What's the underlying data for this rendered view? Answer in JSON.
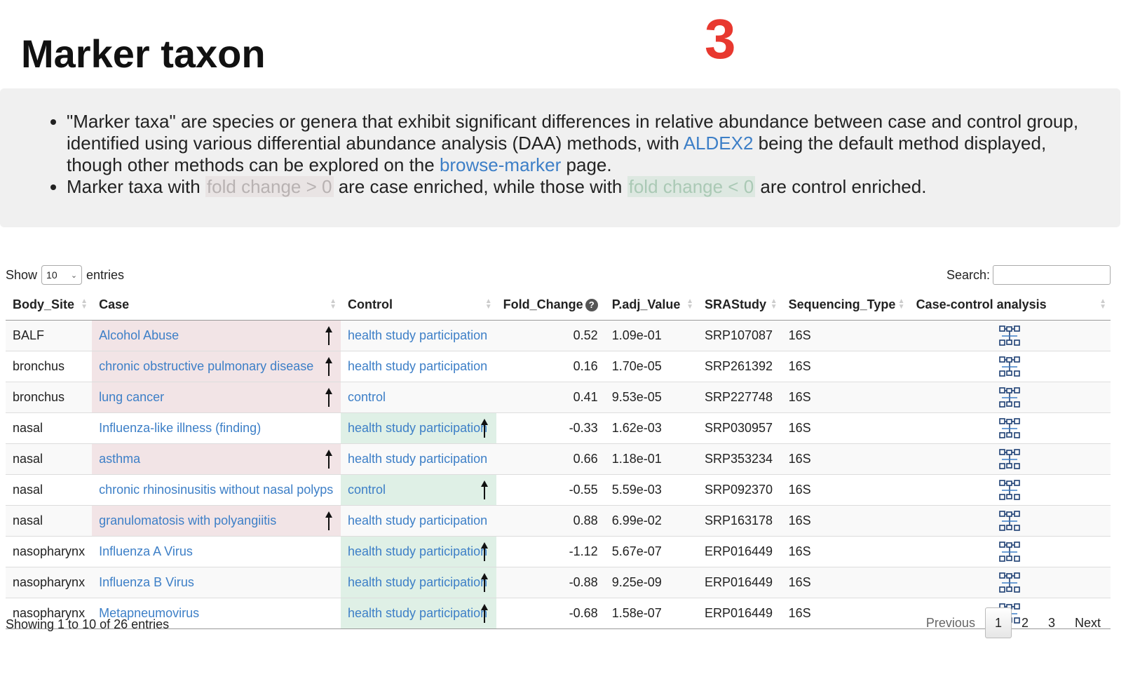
{
  "header": {
    "title": "Marker taxon",
    "step_number": "3"
  },
  "info": {
    "b1_part1": "\"Marker taxa\" are species or genera that exhibit significant differences in relative abundance between case and control group, identified using various differential abundance analysis (DAA) methods, with ",
    "b1_link1": "ALDEX2",
    "b1_part2": " being the default method displayed, though other methods can be explored on the ",
    "b1_link2": "browse-marker",
    "b1_part3": " page.",
    "b2_part1": "Marker taxa with ",
    "b2_pill1": "fold change > 0",
    "b2_part2": " are case enriched, while those with ",
    "b2_pill2": "fold change < 0",
    "b2_part3": " are control enriched."
  },
  "controls": {
    "show_label": "Show",
    "length_value": "10",
    "entries_label": "entries",
    "search_label": "Search:"
  },
  "table": {
    "headers": [
      "Body_Site",
      "Case",
      "Control",
      "Fold_Change",
      "P.adj_Value",
      "SRAStudy",
      "Sequencing_Type",
      "Case-control analysis"
    ],
    "help_icon_symbol": "?",
    "rows": [
      {
        "body_site": "BALF",
        "case": "Alcohol Abuse",
        "control": "health study participation",
        "fold_change": "0.52",
        "padj": "1.09e-01",
        "sra": "SRP107087",
        "seq_type": "16S",
        "enriched": "case"
      },
      {
        "body_site": "bronchus",
        "case": "chronic obstructive pulmonary disease",
        "control": "health study participation",
        "fold_change": "0.16",
        "padj": "1.70e-05",
        "sra": "SRP261392",
        "seq_type": "16S",
        "enriched": "case"
      },
      {
        "body_site": "bronchus",
        "case": "lung cancer",
        "control": "control",
        "fold_change": "0.41",
        "padj": "9.53e-05",
        "sra": "SRP227748",
        "seq_type": "16S",
        "enriched": "case"
      },
      {
        "body_site": "nasal",
        "case": "Influenza-like illness (finding)",
        "control": "health study participation",
        "fold_change": "-0.33",
        "padj": "1.62e-03",
        "sra": "SRP030957",
        "seq_type": "16S",
        "enriched": "control"
      },
      {
        "body_site": "nasal",
        "case": "asthma",
        "control": "health study participation",
        "fold_change": "0.66",
        "padj": "1.18e-01",
        "sra": "SRP353234",
        "seq_type": "16S",
        "enriched": "case"
      },
      {
        "body_site": "nasal",
        "case": "chronic rhinosinusitis without nasal polyps",
        "control": "control",
        "fold_change": "-0.55",
        "padj": "5.59e-03",
        "sra": "SRP092370",
        "seq_type": "16S",
        "enriched": "control"
      },
      {
        "body_site": "nasal",
        "case": "granulomatosis with polyangiitis",
        "control": "health study participation",
        "fold_change": "0.88",
        "padj": "6.99e-02",
        "sra": "SRP163178",
        "seq_type": "16S",
        "enriched": "case"
      },
      {
        "body_site": "nasopharynx",
        "case": "Influenza A Virus",
        "control": "health study participation",
        "fold_change": "-1.12",
        "padj": "5.67e-07",
        "sra": "ERP016449",
        "seq_type": "16S",
        "enriched": "control"
      },
      {
        "body_site": "nasopharynx",
        "case": "Influenza B Virus",
        "control": "health study participation",
        "fold_change": "-0.88",
        "padj": "9.25e-09",
        "sra": "ERP016449",
        "seq_type": "16S",
        "enriched": "control"
      },
      {
        "body_site": "nasopharynx",
        "case": "Metapneumovirus",
        "control": "health study participation",
        "fold_change": "-0.68",
        "padj": "1.58e-07",
        "sra": "ERP016449",
        "seq_type": "16S",
        "enriched": "control"
      }
    ]
  },
  "footer": {
    "info_text": "Showing 1 to 10 of 26 entries",
    "pagination": {
      "previous": "Previous",
      "pages": [
        "1",
        "2",
        "3"
      ],
      "current": "1",
      "next": "Next"
    }
  },
  "colors": {
    "link": "#3d7fc7",
    "step_number": "#e8382f",
    "case_highlight": "#f2e4e6",
    "control_highlight": "#dff0e6"
  },
  "icons": {
    "help": "question-circle-icon",
    "enriched": "up-arrow-icon",
    "analysis": "case-control-analysis-icon"
  }
}
